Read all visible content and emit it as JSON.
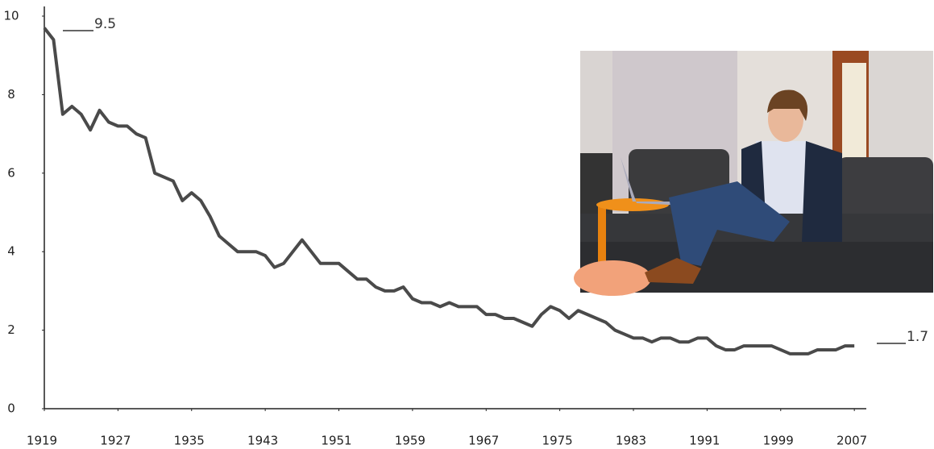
{
  "chart_data": {
    "type": "line",
    "annotations": [
      "9.5",
      "1.7"
    ],
    "x": [
      1919,
      1920,
      1921,
      1922,
      1923,
      1924,
      1925,
      1926,
      1927,
      1928,
      1929,
      1930,
      1931,
      1932,
      1933,
      1934,
      1935,
      1936,
      1937,
      1938,
      1939,
      1940,
      1941,
      1942,
      1943,
      1944,
      1945,
      1946,
      1947,
      1948,
      1949,
      1950,
      1951,
      1952,
      1953,
      1954,
      1955,
      1956,
      1957,
      1958,
      1959,
      1960,
      1961,
      1962,
      1963,
      1964,
      1965,
      1966,
      1967,
      1968,
      1969,
      1970,
      1971,
      1972,
      1973,
      1974,
      1975,
      1976,
      1977,
      1978,
      1979,
      1980,
      1981,
      1982,
      1983,
      1984,
      1985,
      1986,
      1987,
      1988,
      1989,
      1990,
      1991,
      1992,
      1993,
      1994,
      1995,
      1996,
      1997,
      1998,
      1999,
      2000,
      2001,
      2002,
      2003,
      2004,
      2005,
      2006,
      2007
    ],
    "values": [
      9.7,
      9.4,
      7.5,
      7.7,
      7.5,
      7.1,
      7.6,
      7.3,
      7.2,
      7.2,
      7.0,
      6.9,
      6.0,
      5.9,
      5.8,
      5.3,
      5.5,
      5.3,
      4.9,
      4.4,
      4.2,
      4.0,
      4.0,
      4.0,
      3.9,
      3.6,
      3.7,
      4.0,
      4.3,
      4.0,
      3.7,
      3.7,
      3.7,
      3.5,
      3.3,
      3.3,
      3.1,
      3.0,
      3.0,
      3.1,
      2.8,
      2.7,
      2.7,
      2.6,
      2.7,
      2.6,
      2.6,
      2.6,
      2.4,
      2.4,
      2.3,
      2.3,
      2.2,
      2.1,
      2.4,
      2.6,
      2.5,
      2.3,
      2.5,
      2.4,
      2.3,
      2.2,
      2.0,
      1.9,
      1.8,
      1.8,
      1.7,
      1.8,
      1.8,
      1.7,
      1.7,
      1.8,
      1.8,
      1.6,
      1.5,
      1.5,
      1.6,
      1.6,
      1.6,
      1.6,
      1.5,
      1.4,
      1.4,
      1.4,
      1.5,
      1.5,
      1.5,
      1.6,
      1.6
    ],
    "color": "#4a4a4a",
    "xlim": [
      1919,
      2009
    ],
    "xticks": [
      1919,
      1927,
      1935,
      1943,
      1951,
      1959,
      1967,
      1975,
      1983,
      1991,
      1999,
      2007
    ],
    "ylim": [
      0,
      10
    ],
    "yticks": [
      0,
      2,
      4,
      6,
      8,
      10
    ]
  }
}
